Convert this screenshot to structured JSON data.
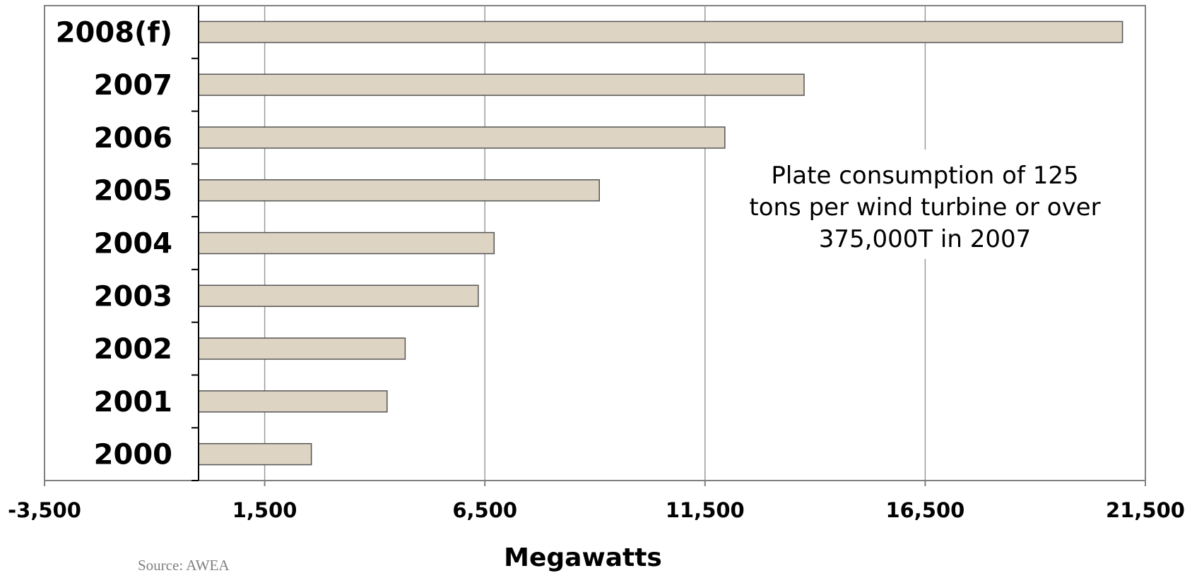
{
  "chart_data": {
    "type": "bar",
    "orientation": "horizontal",
    "categories": [
      "2008(f)",
      "2007",
      "2006",
      "2005",
      "2004",
      "2003",
      "2002",
      "2001",
      "2000"
    ],
    "values": [
      20980,
      13750,
      11950,
      9100,
      6710,
      6350,
      4690,
      4280,
      2560
    ],
    "xlabel": "Megawatts",
    "ylabel": "",
    "xlim": [
      -3500,
      21500
    ],
    "x_ticks": [
      -3500,
      1500,
      6500,
      11500,
      16500,
      21500
    ],
    "x_tick_labels": [
      "-3,500",
      "1,500",
      "6,500",
      "11,500",
      "16,500",
      "21,500"
    ],
    "grid": "vertical",
    "bar_color": "#ddd4c3",
    "bar_edge_color": "#555555",
    "annotation": {
      "lines": [
        "Plate consumption of 125",
        "tons per wind turbine or over",
        "375,000T in 2007"
      ]
    },
    "source": "Source: AWEA"
  }
}
